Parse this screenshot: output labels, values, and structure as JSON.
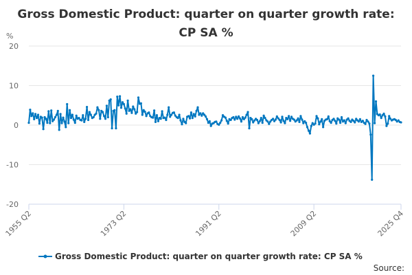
{
  "chart_data": {
    "type": "line",
    "title_lines": [
      "Gross Domestic Product: quarter on quarter growth rate:",
      "CP SA %"
    ],
    "ylabel": "%",
    "xlabel": "",
    "ylim": [
      -20,
      20
    ],
    "yticks": [
      20,
      10,
      0,
      -10,
      -20
    ],
    "x_start": "1955 Q2",
    "x_end": "2025 Q4",
    "xtick_labels": [
      {
        "label": "1955 Q2",
        "index": 0
      },
      {
        "label": "1973 Q2",
        "index": 72
      },
      {
        "label": "1991 Q2",
        "index": 144
      },
      {
        "label": "2009 Q2",
        "index": 216
      },
      {
        "label": "2025 Q4",
        "index": 282
      }
    ],
    "grid": true,
    "legend_position": "bottom",
    "series": [
      {
        "name": "Gross Domestic Product: quarter on quarter growth rate: CP SA %",
        "color": "#0077c0",
        "values": [
          0.6,
          3.9,
          2.3,
          3.0,
          1.5,
          2.8,
          1.8,
          2.6,
          0.4,
          2.1,
          1.9,
          -1.0,
          2.0,
          1.6,
          0.6,
          3.5,
          0.5,
          3.7,
          1.0,
          1.4,
          2.0,
          2.6,
          3.6,
          -1.2,
          2.8,
          0.5,
          1.9,
          0.9,
          -0.5,
          5.3,
          0.5,
          3.8,
          1.8,
          2.6,
          1.4,
          0.6,
          2.4,
          1.6,
          1.8,
          1.3,
          1.2,
          2.5,
          0.8,
          1.6,
          4.6,
          1.3,
          3.3,
          2.6,
          1.8,
          2.0,
          2.6,
          2.9,
          4.5,
          3.8,
          1.6,
          3.6,
          3.3,
          2.3,
          1.6,
          4.9,
          2.0,
          6.2,
          6.5,
          -0.8,
          3.6,
          3.8,
          -0.8,
          7.2,
          5.0,
          7.3,
          4.4,
          5.8,
          5.3,
          4.2,
          2.9,
          6.2,
          3.6,
          4.0,
          3.1,
          4.7,
          4.0,
          2.9,
          3.3,
          7.0,
          5.4,
          5.5,
          2.6,
          3.8,
          3.4,
          2.3,
          3.0,
          3.2,
          2.3,
          2.0,
          1.9,
          3.7,
          0.8,
          2.5,
          1.0,
          1.8,
          1.6,
          3.5,
          1.8,
          1.9,
          1.3,
          2.6,
          4.5,
          2.1,
          2.6,
          3.1,
          3.2,
          2.4,
          2.0,
          1.8,
          2.6,
          1.2,
          0.2,
          1.6,
          0.8,
          0.5,
          2.1,
          2.3,
          1.7,
          3.2,
          1.8,
          2.8,
          2.2,
          3.6,
          4.5,
          2.6,
          3.0,
          2.4,
          3.0,
          2.6,
          2.2,
          1.5,
          0.6,
          1.0,
          -0.2,
          0.4,
          0.5,
          0.8,
          0.9,
          0.3,
          0.1,
          0.6,
          1.2,
          2.5,
          2.1,
          1.9,
          1.1,
          0.4,
          1.5,
          1.3,
          1.8,
          2.0,
          1.4,
          2.1,
          1.6,
          2.2,
          1.7,
          0.9,
          2.0,
          1.5,
          1.9,
          2.6,
          3.3,
          -0.8,
          1.8,
          1.5,
          0.7,
          1.2,
          1.6,
          1.3,
          0.5,
          1.0,
          1.8,
          0.6,
          2.4,
          1.8,
          1.2,
          0.9,
          0.3,
          0.9,
          1.3,
          1.6,
          1.0,
          1.4,
          2.2,
          1.7,
          1.3,
          0.7,
          2.1,
          1.1,
          0.5,
          1.8,
          1.5,
          2.3,
          1.1,
          2.1,
          1.6,
          1.4,
          0.9,
          1.2,
          1.7,
          0.8,
          2.3,
          1.4,
          0.5,
          1.0,
          0.6,
          -0.5,
          -1.4,
          -2.1,
          -0.2,
          0.5,
          0.1,
          0.4,
          2.3,
          1.7,
          0.2,
          0.9,
          1.5,
          -0.5,
          1.1,
          1.4,
          1.5,
          2.2,
          1.0,
          0.6,
          1.3,
          1.6,
          1.1,
          0.4,
          1.7,
          1.4,
          0.6,
          2.0,
          0.9,
          1.2,
          0.5,
          1.4,
          1.7,
          1.1,
          0.8,
          1.4,
          1.1,
          0.7,
          1.6,
          1.2,
          0.9,
          1.5,
          0.8,
          1.1,
          0.6,
          0.3,
          1.3,
          0.9,
          0.4,
          -2.4,
          -13.8,
          12.5,
          0.5,
          6.0,
          2.8,
          2.5,
          2.7,
          1.8,
          2.5,
          2.9,
          2.2,
          -0.2,
          0.4,
          2.3,
          1.6,
          1.2,
          1.4,
          1.5,
          1.3,
          0.9,
          1.2,
          0.8,
          0.7
        ]
      }
    ],
    "source_label": "Source:"
  }
}
